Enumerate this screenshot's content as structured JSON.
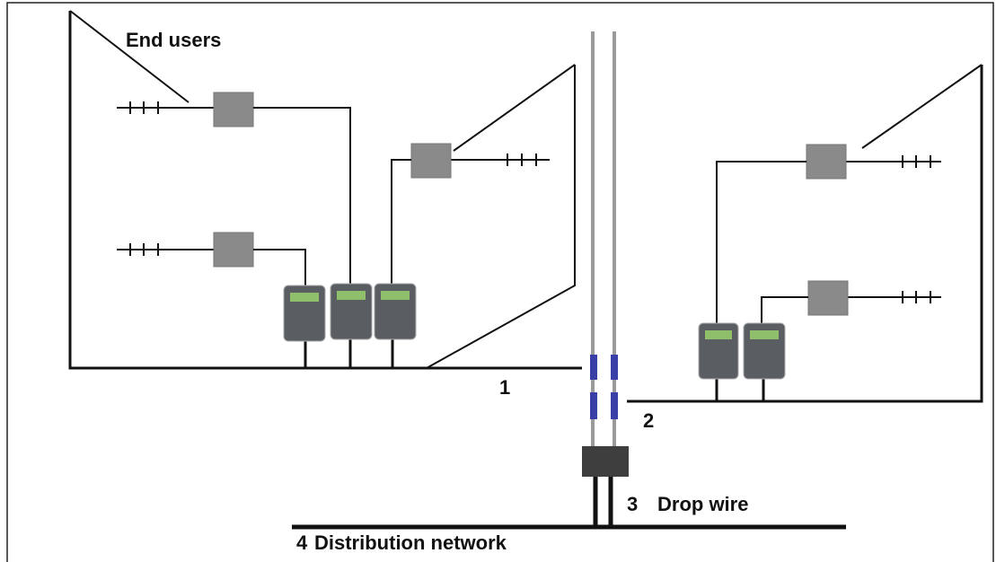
{
  "labels": {
    "end_users": "End users",
    "point_1": "1",
    "point_2": "2",
    "point_3": "3",
    "drop_wire": "Drop wire",
    "point_4": "4",
    "distribution_network": "Distribution network"
  }
}
